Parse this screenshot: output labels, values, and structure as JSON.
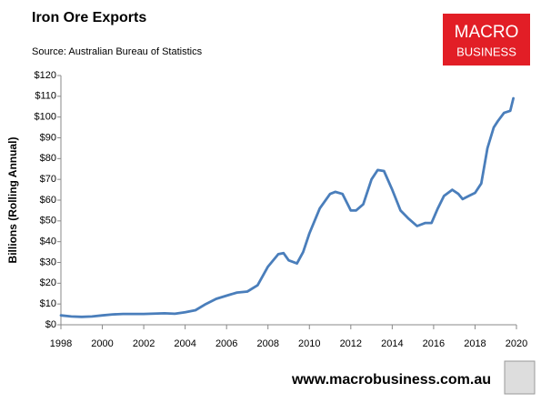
{
  "chart_data": {
    "type": "line",
    "title": "Iron Ore Exports",
    "subtitle": "Source: Australian Bureau of Statistics",
    "y_label": "Billions (Rolling Annual)",
    "logo": [
      "MACRO",
      "BUSINESS"
    ],
    "footer": "www.macrobusiness.com.au",
    "x": [
      1998,
      1998.5,
      1999,
      1999.5,
      2000,
      2000.5,
      2001,
      2002,
      2003,
      2003.5,
      2004,
      2004.5,
      2005,
      2005.5,
      2006,
      2006.5,
      2007,
      2007.5,
      2008,
      2008.5,
      2008.75,
      2009,
      2009.4,
      2009.7,
      2010,
      2010.5,
      2011,
      2011.25,
      2011.6,
      2012,
      2012.25,
      2012.6,
      2013,
      2013.3,
      2013.6,
      2014,
      2014.4,
      2014.8,
      2015.2,
      2015.6,
      2015.9,
      2016.2,
      2016.5,
      2016.9,
      2017.2,
      2017.4,
      2017.7,
      2018,
      2018.3,
      2018.6,
      2018.9,
      2019.1,
      2019.4,
      2019.7,
      2019.85
    ],
    "series": [
      {
        "name": "Iron Ore Exports",
        "color": "#4a7ebb",
        "values": [
          4.5,
          4,
          3.8,
          4,
          4.5,
          5,
          5.2,
          5.2,
          5.5,
          5.3,
          6,
          7,
          10,
          12.5,
          14,
          15.5,
          16,
          19,
          28,
          34,
          34.5,
          31,
          29.5,
          35,
          44,
          56,
          63,
          64,
          63,
          55,
          55,
          58,
          70,
          74.5,
          74,
          65,
          55,
          51,
          47.5,
          49,
          49,
          56,
          62,
          65,
          63,
          60.5,
          62,
          63.5,
          68,
          85,
          95,
          98,
          102,
          103,
          109
        ]
      }
    ],
    "xlim": [
      1998,
      2020
    ],
    "xticks": [
      1998,
      2000,
      2002,
      2004,
      2006,
      2008,
      2010,
      2012,
      2014,
      2016,
      2018,
      2020
    ],
    "ylim": [
      0,
      120
    ],
    "yticks": [
      {
        "value": 0,
        "label": "$0"
      },
      {
        "value": 10,
        "label": "$10"
      },
      {
        "value": 20,
        "label": "$20"
      },
      {
        "value": 30,
        "label": "$30"
      },
      {
        "value": 40,
        "label": "$40"
      },
      {
        "value": 50,
        "label": "$50"
      },
      {
        "value": 60,
        "label": "$60"
      },
      {
        "value": 70,
        "label": "$70"
      },
      {
        "value": 80,
        "label": "$80"
      },
      {
        "value": 90,
        "label": "$90"
      },
      {
        "value": 100,
        "label": "$100"
      },
      {
        "value": 110,
        "label": "$110"
      },
      {
        "value": 120,
        "label": "$120"
      }
    ],
    "grid": false
  }
}
